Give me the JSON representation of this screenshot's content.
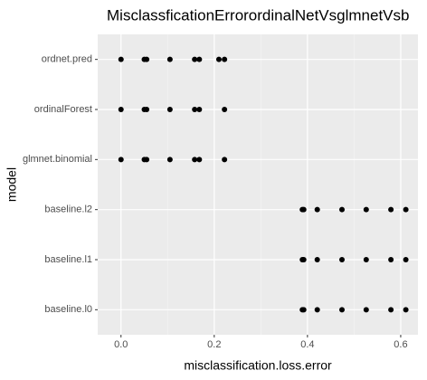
{
  "chart_data": {
    "type": "dotplot",
    "title": "MisclassficationErrorordinalNetVsglmnetVsb",
    "x_label": "misclassification.loss.error",
    "y_label": "model",
    "categories": [
      "ordnet.pred",
      "ordinalForest",
      "glmnet.binomial",
      "baseline.l2",
      "baseline.l1",
      "baseline.l0"
    ],
    "values": [
      [
        0,
        0.05,
        0.055,
        0.105,
        0.158,
        0.168,
        0.21,
        0.222
      ],
      [
        0,
        0.05,
        0.055,
        0.105,
        0.158,
        0.168,
        0.222
      ],
      [
        0,
        0.05,
        0.055,
        0.105,
        0.158,
        0.168,
        0.222
      ],
      [
        0.389,
        0.392,
        0.421,
        0.474,
        0.526,
        0.579,
        0.611
      ],
      [
        0.389,
        0.392,
        0.421,
        0.474,
        0.526,
        0.579,
        0.611
      ],
      [
        0.389,
        0.392,
        0.421,
        0.474,
        0.526,
        0.579,
        0.611
      ]
    ],
    "color": "#000000",
    "xlim": [
      -0.05,
      0.637
    ],
    "xticks": [
      {
        "value": 0,
        "label": "0.0"
      },
      0.2,
      0.4,
      0.6
    ],
    "grid": true
  }
}
